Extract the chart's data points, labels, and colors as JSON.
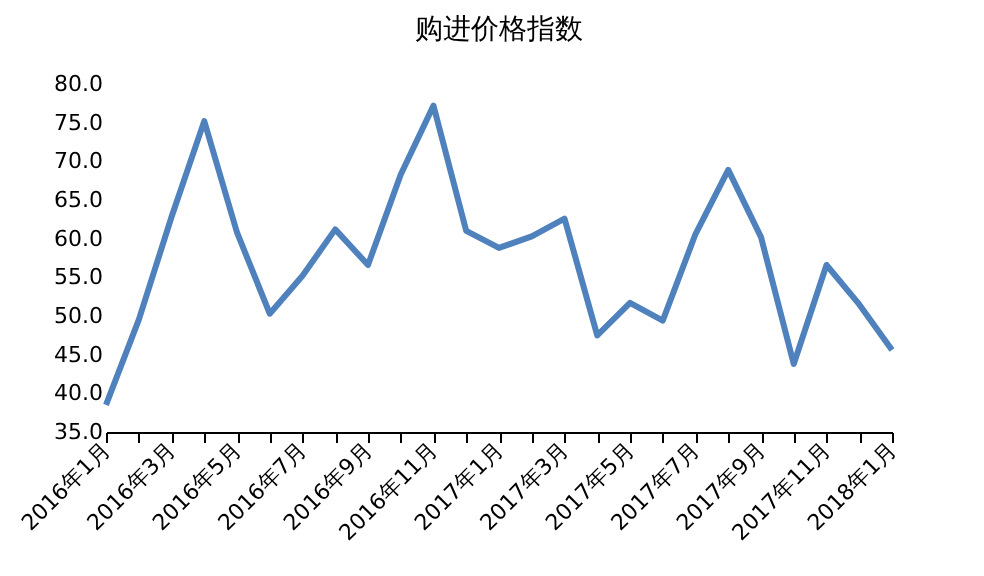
{
  "chart_data": {
    "type": "line",
    "title": "购进价格指数",
    "categories": [
      "2016年1月",
      null,
      "2016年3月",
      null,
      "2016年5月",
      null,
      "2016年7月",
      null,
      "2016年9月",
      null,
      "2016年11月",
      null,
      "2017年1月",
      null,
      "2017年3月",
      null,
      "2017年5月",
      null,
      "2017年7月",
      null,
      "2017年9月",
      null,
      "2017年11月",
      null,
      "2018年1月"
    ],
    "series": [
      {
        "color": "#4f81bd",
        "values": [
          38.5,
          49.5,
          62.8,
          75.2,
          60.8,
          50.3,
          55.2,
          61.2,
          56.6,
          68.3,
          77.2,
          61.0,
          58.8,
          60.3,
          62.6,
          47.5,
          51.7,
          49.4,
          60.6,
          68.9,
          60.2,
          43.8,
          56.6,
          51.5,
          45.6
        ]
      }
    ],
    "ylim": [
      35,
      80
    ],
    "yticks": [
      {
        "value": 35,
        "label": "35.0"
      },
      {
        "value": 40,
        "label": "40.0"
      },
      {
        "value": 45,
        "label": "45.0"
      },
      {
        "value": 50,
        "label": "50.0"
      },
      {
        "value": 55,
        "label": "55.0"
      },
      {
        "value": 60,
        "label": "60.0"
      },
      {
        "value": 65,
        "label": "65.0"
      },
      {
        "value": 70,
        "label": "70.0"
      },
      {
        "value": 75,
        "label": "75.0"
      },
      {
        "value": 80,
        "label": "80.0"
      }
    ],
    "marker": "none",
    "line_style": "solid"
  }
}
